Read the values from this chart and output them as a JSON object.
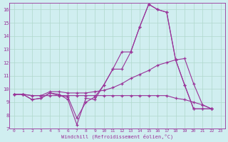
{
  "xlabel": "Windchill (Refroidissement éolien,°C)",
  "background_color": "#d0eef0",
  "grid_color": "#b0d8cc",
  "line_color": "#993399",
  "xlim": [
    -0.5,
    23.5
  ],
  "ylim": [
    7,
    16.5
  ],
  "xticks": [
    0,
    1,
    2,
    3,
    4,
    5,
    6,
    7,
    8,
    9,
    10,
    11,
    12,
    13,
    14,
    15,
    16,
    17,
    18,
    19,
    20,
    21,
    22,
    23
  ],
  "yticks": [
    7,
    8,
    9,
    10,
    11,
    12,
    13,
    14,
    15,
    16
  ],
  "series": [
    [
      0,
      9.6,
      1,
      9.6,
      2,
      9.2,
      3,
      9.3,
      4,
      9.7,
      5,
      9.6,
      6,
      9.2,
      7,
      7.3,
      8,
      9.3,
      9,
      9.2,
      10,
      10.3,
      11,
      11.5,
      12,
      12.8,
      13,
      12.8,
      14,
      14.7,
      15,
      16.4,
      16,
      16.0,
      17,
      15.8,
      18,
      12.2,
      19,
      10.3,
      20,
      8.5,
      21,
      8.5,
      22,
      8.5
    ],
    [
      0,
      9.6,
      1,
      9.6,
      2,
      9.2,
      3,
      9.3,
      4,
      9.7,
      5,
      9.5,
      6,
      9.4,
      7,
      7.8,
      8,
      9.0,
      9,
      9.4,
      10,
      10.3,
      11,
      11.5,
      12,
      11.5,
      13,
      12.8,
      14,
      14.7,
      15,
      16.4,
      16,
      16.0,
      17,
      15.8,
      18,
      12.2,
      19,
      10.3,
      20,
      8.5,
      21,
      8.5,
      22,
      8.5
    ],
    [
      0,
      9.6,
      1,
      9.6,
      2,
      9.5,
      3,
      9.5,
      4,
      9.8,
      5,
      9.8,
      6,
      9.7,
      7,
      9.7,
      8,
      9.7,
      9,
      9.8,
      10,
      9.9,
      11,
      10.1,
      12,
      10.4,
      13,
      10.8,
      14,
      11.1,
      15,
      11.4,
      16,
      11.8,
      17,
      12.0,
      18,
      12.2,
      19,
      12.3,
      20,
      10.4,
      21,
      8.8,
      22,
      8.5
    ],
    [
      0,
      9.6,
      1,
      9.6,
      2,
      9.5,
      3,
      9.5,
      4,
      9.5,
      5,
      9.5,
      6,
      9.5,
      7,
      9.5,
      8,
      9.5,
      9,
      9.5,
      10,
      9.5,
      11,
      9.5,
      12,
      9.5,
      13,
      9.5,
      14,
      9.5,
      15,
      9.5,
      16,
      9.5,
      17,
      9.5,
      18,
      9.3,
      19,
      9.2,
      20,
      9.0,
      21,
      8.8,
      22,
      8.5
    ]
  ]
}
